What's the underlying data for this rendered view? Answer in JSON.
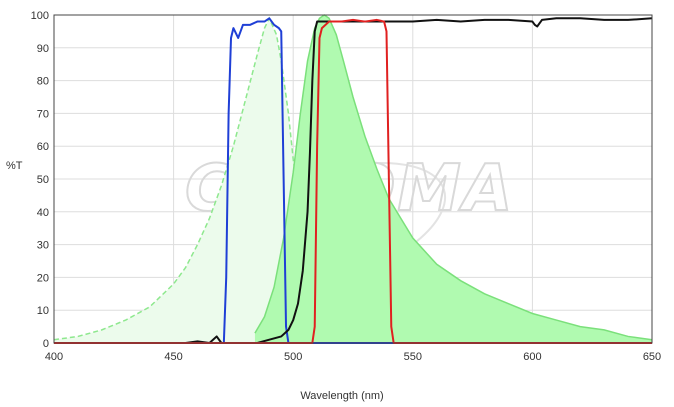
{
  "chart_data": {
    "type": "area",
    "title": "",
    "xlabel": "Wavelength (nm)",
    "ylabel": "%T",
    "xlim": [
      400,
      650
    ],
    "ylim": [
      0,
      100
    ],
    "x_ticks": [
      400,
      450,
      500,
      550,
      600,
      650
    ],
    "y_ticks": [
      0,
      10,
      20,
      30,
      40,
      50,
      60,
      70,
      80,
      90,
      100
    ],
    "grid": true,
    "legend": "none",
    "watermark": "CHROMA",
    "series": [
      {
        "kind": "excitation-spectrum",
        "style": "area-dashed",
        "color": "#8ee88e",
        "fill": "#ecfbec",
        "points": [
          [
            400,
            1
          ],
          [
            410,
            2
          ],
          [
            420,
            4
          ],
          [
            430,
            7
          ],
          [
            440,
            11
          ],
          [
            450,
            18
          ],
          [
            455,
            23
          ],
          [
            460,
            30
          ],
          [
            465,
            38
          ],
          [
            470,
            48
          ],
          [
            475,
            60
          ],
          [
            480,
            74
          ],
          [
            485,
            88
          ],
          [
            488,
            96
          ],
          [
            490,
            99
          ],
          [
            493,
            94
          ],
          [
            495,
            86
          ],
          [
            498,
            70
          ],
          [
            500,
            56
          ],
          [
            503,
            40
          ],
          [
            505,
            30
          ],
          [
            508,
            20
          ],
          [
            510,
            15
          ],
          [
            515,
            7
          ],
          [
            520,
            3
          ],
          [
            525,
            1
          ],
          [
            530,
            0
          ]
        ]
      },
      {
        "kind": "emission-spectrum",
        "style": "area-solid",
        "color": "#7be07b",
        "fill": "#b0fab0",
        "points": [
          [
            484,
            3
          ],
          [
            488,
            8
          ],
          [
            492,
            17
          ],
          [
            496,
            32
          ],
          [
            500,
            52
          ],
          [
            503,
            70
          ],
          [
            506,
            86
          ],
          [
            509,
            96
          ],
          [
            511,
            99
          ],
          [
            513,
            100
          ],
          [
            515,
            99
          ],
          [
            518,
            94
          ],
          [
            521,
            86
          ],
          [
            525,
            75
          ],
          [
            530,
            63
          ],
          [
            535,
            53
          ],
          [
            540,
            44
          ],
          [
            545,
            38
          ],
          [
            550,
            32
          ],
          [
            560,
            24
          ],
          [
            570,
            19
          ],
          [
            580,
            15
          ],
          [
            590,
            12
          ],
          [
            600,
            9
          ],
          [
            610,
            7
          ],
          [
            620,
            5
          ],
          [
            630,
            4
          ],
          [
            640,
            2
          ],
          [
            650,
            1
          ]
        ]
      },
      {
        "kind": "excitation-filter",
        "style": "line",
        "color": "#1f3fd6",
        "points": [
          [
            400,
            0
          ],
          [
            470,
            0
          ],
          [
            471,
            0
          ],
          [
            472,
            20
          ],
          [
            473,
            70
          ],
          [
            474,
            93
          ],
          [
            475,
            96
          ],
          [
            477,
            93
          ],
          [
            479,
            97
          ],
          [
            482,
            97
          ],
          [
            485,
            98
          ],
          [
            488,
            98
          ],
          [
            490,
            99
          ],
          [
            492,
            97
          ],
          [
            494,
            96
          ],
          [
            495,
            95
          ],
          [
            496,
            50
          ],
          [
            497,
            5
          ],
          [
            498,
            0
          ],
          [
            650,
            0
          ]
        ]
      },
      {
        "kind": "dichroic-mirror",
        "style": "line",
        "color": "#111111",
        "points": [
          [
            400,
            0
          ],
          [
            455,
            0
          ],
          [
            460,
            0.5
          ],
          [
            465,
            0
          ],
          [
            468,
            2
          ],
          [
            470,
            0
          ],
          [
            485,
            0
          ],
          [
            490,
            1
          ],
          [
            495,
            2
          ],
          [
            498,
            4
          ],
          [
            500,
            7
          ],
          [
            502,
            12
          ],
          [
            504,
            22
          ],
          [
            506,
            40
          ],
          [
            507,
            58
          ],
          [
            508,
            80
          ],
          [
            509,
            95
          ],
          [
            510,
            98
          ],
          [
            515,
            98
          ],
          [
            520,
            98
          ],
          [
            530,
            98
          ],
          [
            540,
            98
          ],
          [
            550,
            98
          ],
          [
            560,
            98.5
          ],
          [
            570,
            98
          ],
          [
            580,
            98.5
          ],
          [
            590,
            98.5
          ],
          [
            600,
            98
          ],
          [
            601,
            97
          ],
          [
            602,
            96.5
          ],
          [
            604,
            98.5
          ],
          [
            610,
            99
          ],
          [
            620,
            99
          ],
          [
            630,
            98.5
          ],
          [
            640,
            98.5
          ],
          [
            650,
            99
          ]
        ]
      },
      {
        "kind": "emission-filter",
        "style": "line",
        "color": "#e02020",
        "points": [
          [
            400,
            0
          ],
          [
            508,
            0
          ],
          [
            509,
            5
          ],
          [
            510,
            60
          ],
          [
            511,
            93
          ],
          [
            512,
            96
          ],
          [
            515,
            98
          ],
          [
            520,
            98
          ],
          [
            525,
            98.5
          ],
          [
            530,
            98
          ],
          [
            535,
            98.5
          ],
          [
            538,
            98
          ],
          [
            539,
            95
          ],
          [
            540,
            50
          ],
          [
            541,
            5
          ],
          [
            542,
            0
          ],
          [
            650,
            0
          ]
        ]
      }
    ]
  }
}
